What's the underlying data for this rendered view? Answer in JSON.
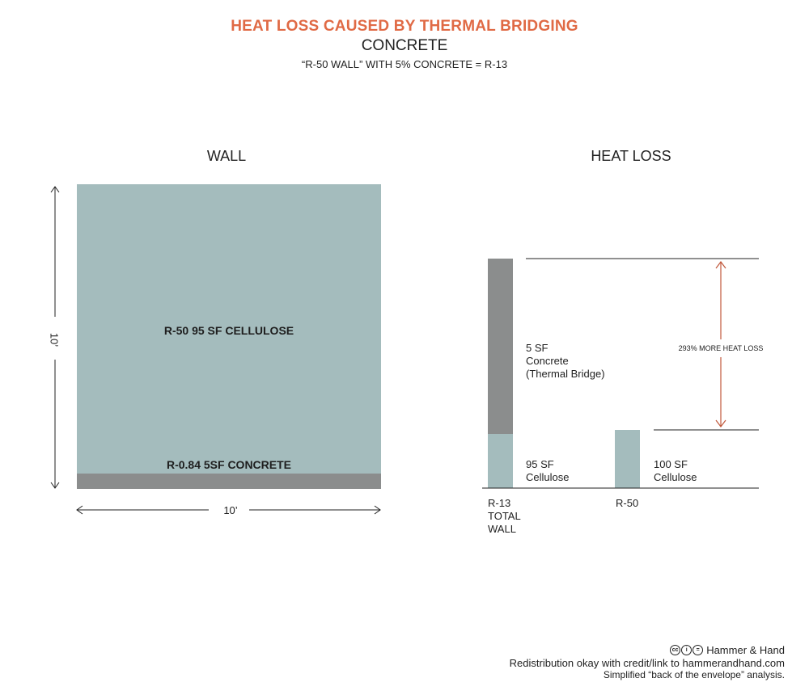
{
  "header": {
    "title": "HEAT LOSS CAUSED BY THERMAL BRIDGING",
    "subtitle": "CONCRETE",
    "caption": "“R-50 WALL”  WITH 5% CONCRETE = R-13"
  },
  "wall": {
    "heading": "WALL",
    "cellulose_label": "R-50 95 SF CELLULOSE",
    "concrete_label": "R-0.84 5SF CONCRETE",
    "height_label": "10’",
    "width_label": "10’"
  },
  "heat_loss": {
    "heading": "HEAT LOSS",
    "bar1": {
      "name": "R-13\nTOTAL\nWALL",
      "name_lines": [
        "R-13",
        "TOTAL",
        "WALL"
      ],
      "concrete_text": [
        "5 SF",
        "Concrete",
        "(Thermal Bridge)"
      ],
      "cellulose_text": [
        "95 SF",
        "Cellulose"
      ]
    },
    "bar2": {
      "name": "R-50",
      "cellulose_text": [
        "100 SF",
        "Cellulose"
      ]
    },
    "difference_label": "293% MORE HEAT LOSS",
    "colors": {
      "cellulose": "#a4bcbd",
      "concrete": "#8b8d8d",
      "arrow": "#c0573a"
    }
  },
  "footer": {
    "license_icons": [
      "cc-icon",
      "by-icon",
      "equals-icon"
    ],
    "license_glyphs": [
      "cc",
      "i",
      "="
    ],
    "author": "Hammer & Hand",
    "line1": "Redistribution okay with credit/link to hammerandhand.com",
    "line2": "Simplified “back of the envelope” analysis."
  }
}
